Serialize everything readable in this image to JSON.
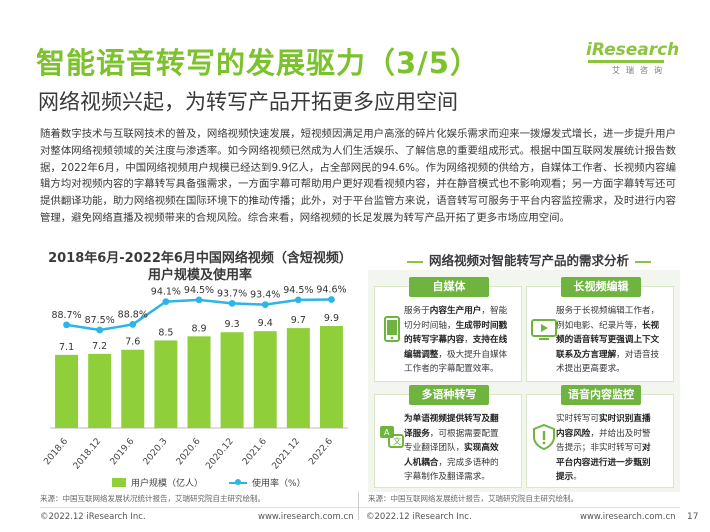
{
  "header": {
    "title": "智能语音转写的发展驱力（3/5）",
    "subtitle": "网络视频兴起，为转写产品开拓更多应用空间",
    "logo_main": "iResearch",
    "logo_sub": "艾瑞咨询"
  },
  "intro": {
    "paragraph": "随着数字技术与互联网技术的普及，网络视频快速发展，短视频因满足用户高涨的碎片化娱乐需求而迎来一拨爆发式增长，进一步提升用户对整体网络视频领域的关注度与渗透率。如今网络视频已然成为人们生活娱乐、了解信息的重要组成形式。根据中国互联网发展统计报告数据，2022年6月，中国网络视频用户规模已经达到9.9亿人，占全部网民的94.6%。作为网络视频的供给方，自媒体工作者、长视频内容编辑方均对视频内容的字幕转写具备强需求，一方面字幕可帮助用户更好观看视频内容，并在静音模式也不影响观看；另一方面字幕转写还可提供翻译功能，助力网络视频在国际环境下的推动传播；此外，对于平台监管方来说，语音转写可服务于平台内容监控需求，及时进行内容管理，避免网络直播及视频带来的合规风险。综合来看，网络视频的长足发展为转写产品开拓了更多市场应用空间。"
  },
  "left_chart": {
    "title": "2018年6月-2022年6月中国网络视频（含短视频）用户规模及使用率",
    "legend_bar": "用户规模（亿人）",
    "legend_line": "使用率（%）",
    "source": "来源：中国互联网络发展状况统计报告，艾瑞研究院自主研究绘制。"
  },
  "chart_data": {
    "type": "bar",
    "categories": [
      "2018.6",
      "2018.12",
      "2019.6",
      "2020.3",
      "2020.6",
      "2020.12",
      "2021.6",
      "2021.12",
      "2022.6"
    ],
    "series": [
      {
        "name": "用户规模（亿人）",
        "type": "bar",
        "values": [
          7.1,
          7.2,
          7.6,
          8.5,
          8.9,
          9.3,
          9.4,
          9.7,
          9.9
        ],
        "labels": [
          "7.1",
          "7.2",
          "7.6",
          "8.5",
          "8.9",
          "9.3",
          "9.4",
          "9.7",
          "9.9"
        ],
        "color": "#8fcf3a"
      },
      {
        "name": "使用率（%）",
        "type": "line",
        "values": [
          88.7,
          87.5,
          88.8,
          94.1,
          94.5,
          93.7,
          93.4,
          94.5,
          94.6
        ],
        "labels": [
          "88.7%",
          "87.5%",
          "88.8%",
          "94.1%",
          "94.5%",
          "93.7%",
          "93.4%",
          "94.5%",
          "94.6%"
        ],
        "color": "#2db5e5"
      }
    ]
  },
  "right_panel": {
    "title": "网络视频对智能转写产品的需求分析",
    "source": "来源：中国互联网络发展统计报告，艾瑞研究院自主研究绘制。",
    "cards": [
      {
        "head": "自媒体",
        "icon": "smartphone-icon",
        "lines": [
          "服务于内容生产用户，智能",
          "切分时间轴，生成带时间戳",
          "的转写字幕内容，支持在线",
          "编辑调整，极大提升自媒体",
          "工作者的字幕配置效率。"
        ]
      },
      {
        "head": "长视频编辑",
        "icon": "video-player-icon",
        "lines": [
          "服务于长视频编辑工作者，",
          "例如电影、纪录片等，长视",
          "频的语音转写更强调上下文",
          "联系及方言理解，对语音技",
          "术提出更高要求。"
        ]
      },
      {
        "head": "多语种转写",
        "icon": "translate-icon",
        "lines": [
          "为单语视频提供转写及翻",
          "译服务，可根据需要配置",
          "专业翻译团队，实现高效",
          "人机耦合，完成多语种的",
          "字幕制作及翻译需求。"
        ]
      },
      {
        "head": "语音内容监控",
        "icon": "shield-icon",
        "lines": [
          "实时转写可实时识别直播",
          "内容风险，并给出及时警",
          "告提示；非实时转写可对",
          "平台内容进行进一步甄别",
          "提示。"
        ]
      }
    ]
  },
  "footer": {
    "left_copy": "©2022.12 iResearch Inc.",
    "left_url": "www.iresearch.com.cn",
    "right_copy": "©2022.12 iResearch Inc.",
    "right_url": "www.iresearch.com.cn",
    "page": "17"
  },
  "colors": {
    "brand_green": "#7cc22c",
    "card_green": "#6eb43f",
    "line_blue": "#2db5e5",
    "bar_green": "#8fcf3a"
  }
}
